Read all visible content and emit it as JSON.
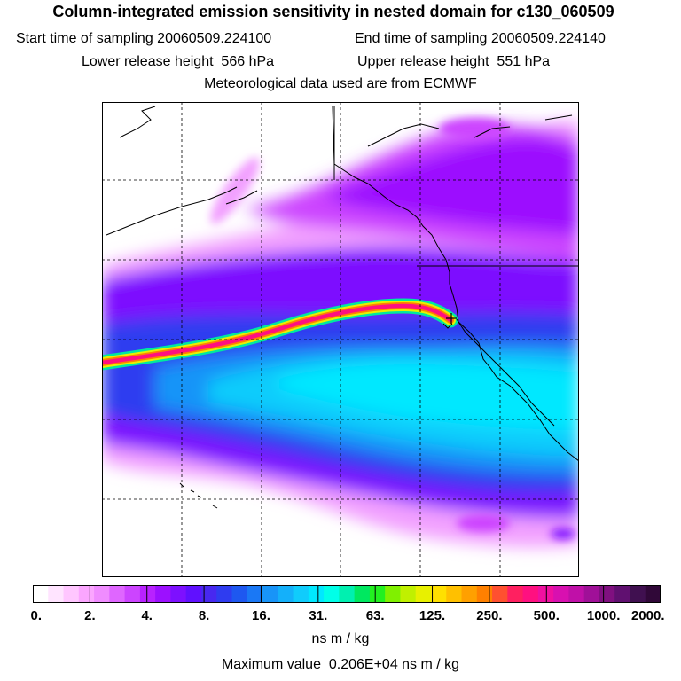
{
  "header": {
    "title": "Column-integrated emission sensitivity in nested domain for c130_060509",
    "start_time": "Start time of sampling 20060509.224100",
    "end_time": "End time of sampling 20060509.224140",
    "lower_height": "Lower release height  566 hPa",
    "upper_height": "Upper release height  551 hPa",
    "met_data": "Meteorological data used are from ECMWF"
  },
  "colorbar": {
    "tick_labels": [
      "0.",
      "2.",
      "4.",
      "8.",
      "16.",
      "31.",
      "63.",
      "125.",
      "250.",
      "500.",
      "1000.",
      "2000."
    ],
    "colors": [
      "#ffffff",
      "#ffe4ff",
      "#ffc6ff",
      "#fba6ff",
      "#f08cff",
      "#df66ff",
      "#cc44ff",
      "#b822ff",
      "#9c10ff",
      "#7d10ff",
      "#6010ff",
      "#4828f0",
      "#2f3cf0",
      "#1e58f0",
      "#1a78f5",
      "#1894f8",
      "#14b0fa",
      "#10ccfc",
      "#00e8ff",
      "#00ffe8",
      "#00f0b0",
      "#00e860",
      "#22f020",
      "#80f000",
      "#c0f000",
      "#e8f000",
      "#ffe000",
      "#ffc000",
      "#ffa000",
      "#ff8000",
      "#ff5030",
      "#ff2060",
      "#ff1080",
      "#f010a0",
      "#d810b0",
      "#c010a8",
      "#a01098",
      "#801080",
      "#601070",
      "#401050",
      "#300838"
    ],
    "units": "ns m / kg",
    "max_value": "Maximum value  0.206E+04 ns m / kg"
  }
}
